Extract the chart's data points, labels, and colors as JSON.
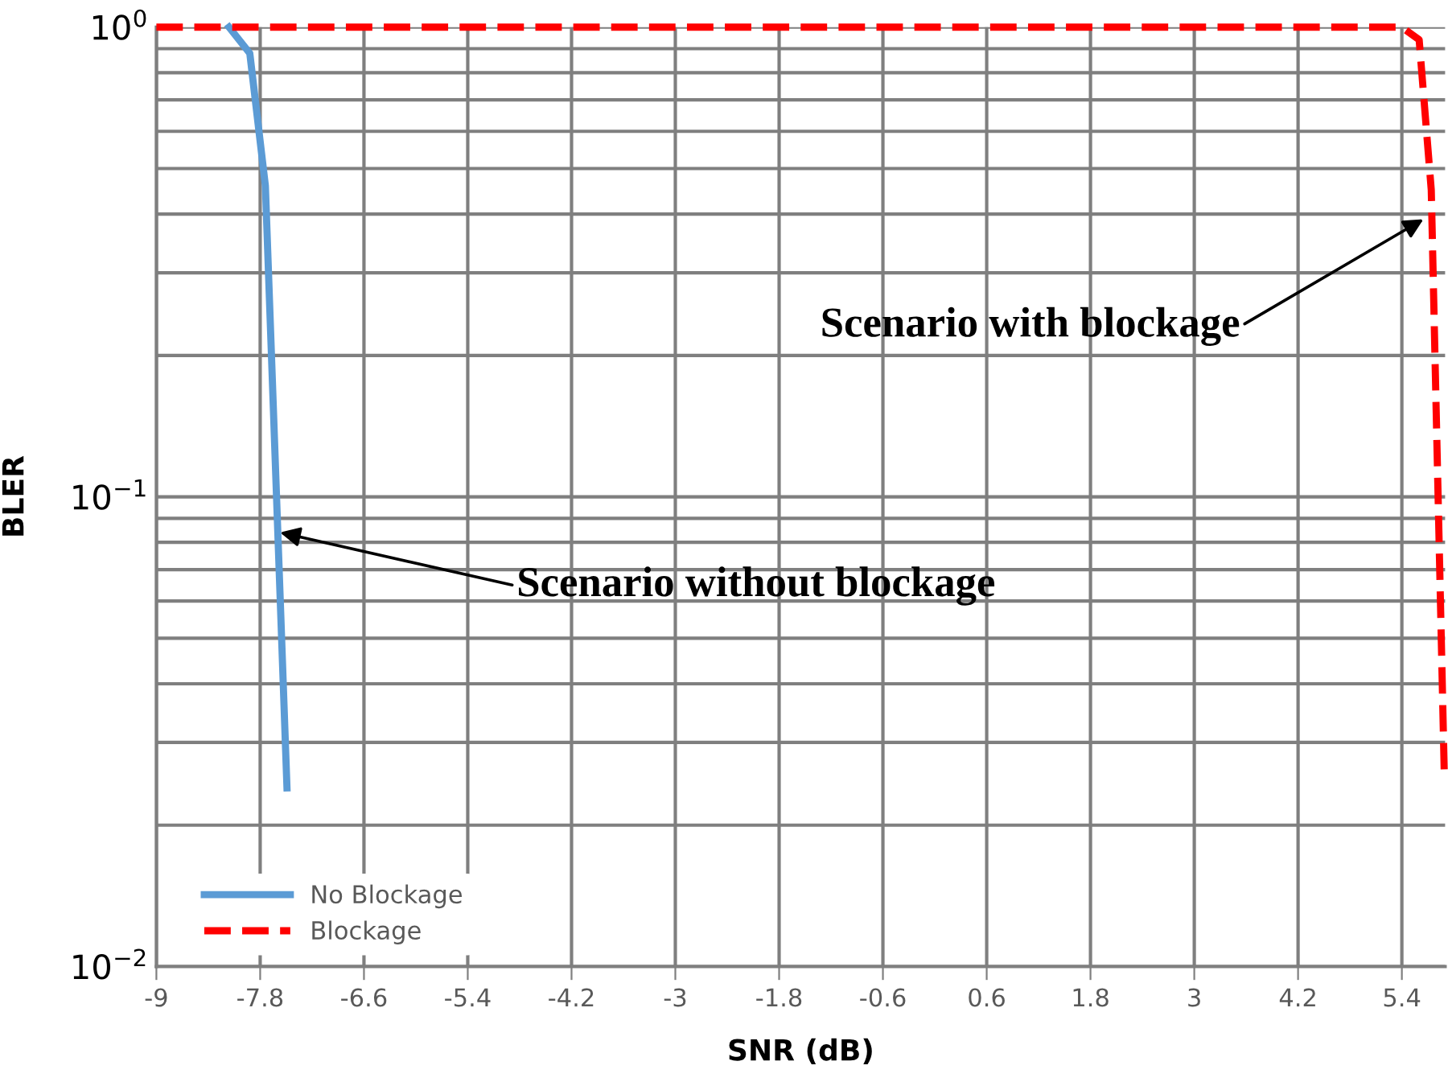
{
  "chart_data": {
    "type": "line",
    "xlabel": "SNR (dB)",
    "ylabel": "BLER",
    "log": "y",
    "xlim": [
      -9,
      5.9
    ],
    "xticks": [
      -9,
      -7.8,
      -6.6,
      -5.4,
      -4.2,
      -3,
      -1.8,
      -0.6,
      0.6,
      1.8,
      3,
      4.2,
      5.4
    ],
    "ylim": [
      0.01,
      1
    ],
    "yticks": [
      {
        "value": 1,
        "label": "10$^{0}$"
      },
      {
        "value": 0.1,
        "label": "10$^{−1}$"
      },
      {
        "value": 0.01,
        "label": "10$^{−2}$"
      }
    ],
    "grid": true,
    "legend": "bottom left",
    "series": [
      {
        "name": "No Blockage",
        "color": "#5b9bd5",
        "line_style": "solid",
        "x": [
          -8.16,
          -7.92,
          -7.74,
          -7.49
        ],
        "values": [
          1,
          0.88,
          0.46,
          0.024
        ]
      },
      {
        "name": "Blockage",
        "color": "#ff0000",
        "line_style": "dashed",
        "x": [
          -9,
          5.4,
          5.6,
          5.74,
          5.89
        ],
        "values": [
          1,
          1,
          0.94,
          0.45,
          0.026
        ]
      }
    ],
    "annotations": [
      {
        "text": "Scenario with blockage",
        "x": 5.65,
        "y": 0.39
      },
      {
        "text": "Scenario without blockage",
        "x": -7.57,
        "y": 0.084
      }
    ]
  }
}
